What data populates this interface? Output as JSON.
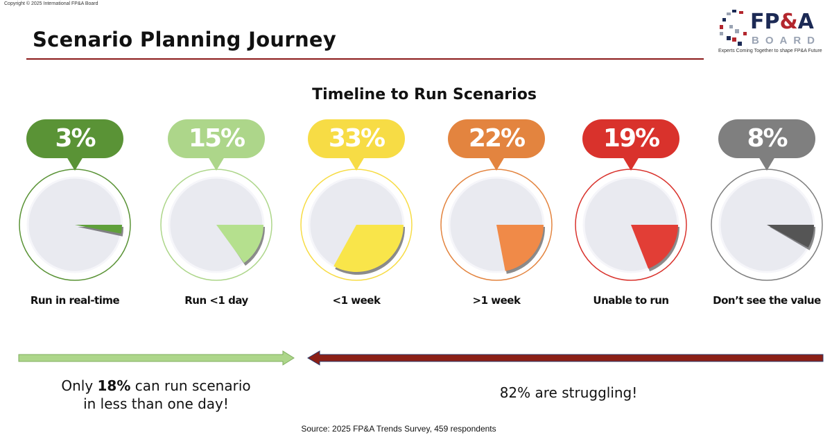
{
  "copyright": "Copyright © 2025 International FP&A Board",
  "header": {
    "title": "Scenario Planning Journey"
  },
  "logo": {
    "main": "FP",
    "amp": "&",
    "end": "A",
    "sub": "BOARD",
    "tagline": "Experts Coming Together to shape FP&A Future"
  },
  "chart_data": {
    "type": "pie",
    "title": "Timeline to Run Scenarios",
    "categories": [
      "Run in real-time",
      "Run <1 day",
      "<1 week",
      ">1 week",
      "Unable to run",
      "Don’t see the value"
    ],
    "values": [
      3,
      15,
      33,
      22,
      19,
      8
    ],
    "labels": [
      "3%",
      "15%",
      "33%",
      "22%",
      "19%",
      "8%"
    ],
    "colors": [
      "#5a9336",
      "#add68a",
      "#f7dc45",
      "#e3843f",
      "#d9322c",
      "#7f7f7f"
    ],
    "wedge_colors": [
      "#5fa03a",
      "#b5e08e",
      "#f9e54a",
      "#f08a48",
      "#e23e36",
      "#555555"
    ]
  },
  "summary": {
    "left_pre": "Only ",
    "left_bold": "18%",
    "left_post": " can run scenario",
    "left_line2": "in less than one day!",
    "right": "82% are struggling!",
    "left_arrow_color": "#add68a",
    "right_arrow_color": "#8b1f16"
  },
  "source": "Source: 2025 FP&A Trends Survey, 459 respondents"
}
